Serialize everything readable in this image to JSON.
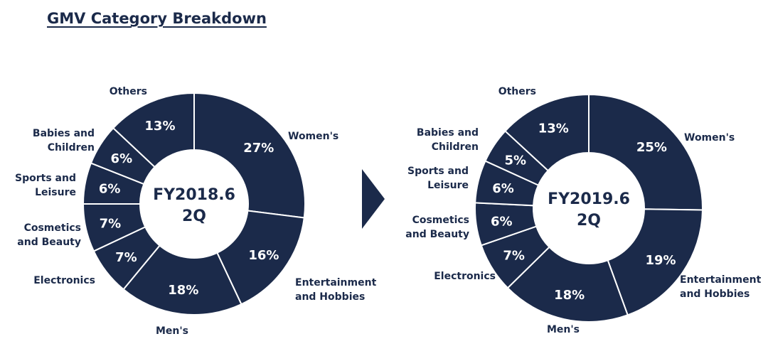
{
  "title": "GMV Category Breakdown",
  "colors": {
    "slice": "#1b2a4a",
    "divider": "#ffffff",
    "text": "#1b2a4a",
    "arrow": "#1b2a4a"
  },
  "chart_data": [
    {
      "type": "pie",
      "center_label": [
        "FY2018.6",
        "2Q"
      ],
      "unit": "%",
      "categories": [
        "Women's",
        "Entertainment and Hobbies",
        "Men's",
        "Electronics",
        "Cosmetics and Beauty",
        "Sports and Leisure",
        "Babies and Children",
        "Others"
      ],
      "values": [
        27,
        16,
        18,
        7,
        7,
        6,
        6,
        13
      ]
    },
    {
      "type": "pie",
      "center_label": [
        "FY2019.6",
        "2Q"
      ],
      "unit": "%",
      "categories": [
        "Women's",
        "Entertainment and Hobbies",
        "Men's",
        "Electronics",
        "Cosmetics and Beauty",
        "Sports and Leisure",
        "Babies and Children",
        "Others"
      ],
      "values": [
        25,
        19,
        18,
        7,
        6,
        6,
        5,
        13
      ]
    }
  ]
}
